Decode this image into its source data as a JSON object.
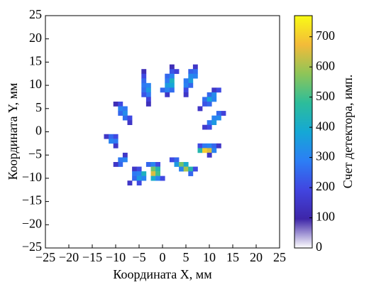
{
  "chart_data": {
    "type": "heatmap",
    "xlabel": "Координата X, мм",
    "ylabel": "Координата Y, мм",
    "colorbar_label": "Счет детектора, имп.",
    "xlim": [
      -25,
      25
    ],
    "ylim": [
      -25,
      25
    ],
    "zlim": [
      0,
      770
    ],
    "xticks": [
      {
        "value": -25,
        "label": "−25"
      },
      {
        "value": -20,
        "label": "−20"
      },
      {
        "value": -15,
        "label": "−15"
      },
      {
        "value": -10,
        "label": "−10"
      },
      {
        "value": -5,
        "label": "−5"
      },
      0,
      5,
      10,
      15,
      20,
      25
    ],
    "yticks": [
      {
        "value": -25,
        "label": "−25"
      },
      {
        "value": -20,
        "label": "−20"
      },
      {
        "value": -15,
        "label": "−15"
      },
      {
        "value": -10,
        "label": "−10"
      },
      {
        "value": -5,
        "label": "−5"
      },
      0,
      5,
      10,
      15,
      20,
      25
    ],
    "zticks": [
      0,
      100,
      200,
      300,
      400,
      500,
      600,
      700
    ],
    "cell_size": 1,
    "colormap": [
      "#ffffff",
      "#3e26a8",
      "#4145e0",
      "#2c7ef5",
      "#15a8d5",
      "#2dbd9a",
      "#8ec558",
      "#f3bb39",
      "#f9fb15"
    ],
    "x": [
      -4,
      -4,
      -4,
      -4,
      -3,
      -4,
      -3,
      -3,
      -4,
      -3,
      -3,
      2,
      2,
      3,
      1,
      2,
      1,
      2,
      1,
      2,
      0,
      1,
      2,
      1,
      7,
      7,
      6,
      6,
      7,
      6,
      5,
      5,
      6,
      5,
      5,
      11,
      12,
      10,
      11,
      9,
      10,
      11,
      9,
      10,
      8,
      13,
      12,
      12,
      11,
      10,
      11,
      10,
      9,
      8,
      9,
      10,
      11,
      12,
      8,
      9,
      10,
      11,
      10,
      2,
      3,
      3,
      4,
      5,
      4,
      5,
      6,
      6,
      7,
      -3,
      -2,
      -1,
      -2,
      -1,
      -2,
      -1,
      -2,
      -1,
      0,
      -6,
      -5,
      -6,
      -5,
      -4,
      -6,
      -5,
      -4,
      -7,
      -5,
      -8,
      -8,
      -9,
      -9,
      -10,
      -12,
      -11,
      -10,
      -11,
      -10,
      -10,
      -10,
      -9,
      -9,
      -8,
      -9,
      -8,
      -8,
      -7,
      -7
    ],
    "y": [
      13,
      12,
      11,
      10,
      10,
      9,
      9,
      8,
      8,
      7,
      6,
      14,
      13,
      13,
      12,
      12,
      11,
      11,
      10,
      10,
      9,
      9,
      9,
      8,
      14,
      13,
      13,
      12,
      12,
      11,
      11,
      10,
      10,
      9,
      8,
      9,
      9,
      8,
      8,
      7,
      7,
      7,
      6,
      6,
      5,
      4,
      4,
      3,
      3,
      2,
      2,
      1,
      1,
      -3,
      -3,
      -3,
      -3,
      -3,
      -4,
      -4,
      -4,
      -4,
      -5,
      -6,
      -6,
      -7,
      -7,
      -7,
      -8,
      -8,
      -8,
      -9,
      -8,
      -7,
      -7,
      -7,
      -8,
      -8,
      -9,
      -9,
      -10,
      -10,
      -10,
      -8,
      -8,
      -9,
      -9,
      -9,
      -10,
      -10,
      -10,
      -11,
      -11,
      -5,
      -6,
      -6,
      -7,
      -7,
      -1,
      -1,
      -1,
      -2,
      -2,
      -3,
      6,
      6,
      5,
      5,
      4,
      4,
      3,
      3,
      2
    ],
    "values": [
      120,
      200,
      250,
      280,
      300,
      260,
      350,
      280,
      220,
      180,
      130,
      120,
      220,
      180,
      250,
      300,
      280,
      420,
      350,
      380,
      250,
      300,
      260,
      150,
      150,
      260,
      240,
      320,
      300,
      360,
      280,
      300,
      250,
      200,
      150,
      150,
      200,
      250,
      320,
      260,
      380,
      300,
      220,
      250,
      150,
      180,
      250,
      320,
      300,
      280,
      350,
      200,
      160,
      200,
      280,
      300,
      250,
      150,
      450,
      700,
      650,
      300,
      150,
      200,
      250,
      350,
      550,
      400,
      300,
      600,
      450,
      250,
      200,
      250,
      300,
      200,
      550,
      450,
      650,
      500,
      400,
      300,
      200,
      150,
      200,
      280,
      300,
      420,
      250,
      350,
      300,
      150,
      200,
      150,
      300,
      280,
      250,
      150,
      150,
      250,
      200,
      300,
      280,
      150,
      120,
      200,
      300,
      280,
      250,
      320,
      260,
      200,
      150
    ]
  }
}
